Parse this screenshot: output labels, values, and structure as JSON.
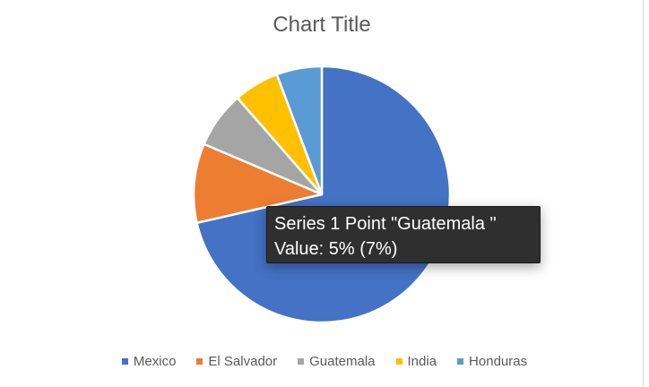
{
  "chart_data": {
    "type": "pie",
    "title": "Chart Title",
    "series": [
      {
        "name": "Series 1",
        "categories": [
          "Mexico",
          "El Salvador",
          "Guatemala",
          "India",
          "Honduras"
        ],
        "values": [
          50,
          7,
          5,
          4,
          4
        ]
      }
    ],
    "legend_position": "bottom",
    "start_angle_deg": 0,
    "direction": "clockwise"
  },
  "colors": {
    "Mexico": "#4472C4",
    "El Salvador": "#ED7D31",
    "Guatemala": "#A5A5A5",
    "India": "#FFC000",
    "Honduras": "#5B9BD5"
  },
  "tooltip": {
    "line1": "Series 1 Point \"Guatemala \"",
    "line2": "Value: 5% (7%)"
  }
}
